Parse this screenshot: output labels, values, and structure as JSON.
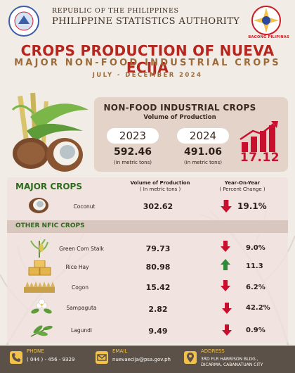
{
  "header": {
    "agency_line1": "REPUBLIC OF THE PHILIPPINES",
    "agency_line2": "PHILIPPINE STATISTICS AUTHORITY",
    "bagong_pilipinas": "BAGONG PILIPINAS"
  },
  "title": "CROPS PRODUCTION OF NUEVA ECIJA",
  "subtitle": "MAJOR NON-FOOD INDUSTRIAL  CROPS",
  "period": "JULY - DECEMBER 2024",
  "summary": {
    "heading": "NON-FOOD INDUSTRIAL CROPS",
    "subheading": "Volume of Production",
    "year_a": "2023",
    "value_a": "592.46",
    "unit_a": "(in metric tons)",
    "year_b": "2024",
    "value_b": "491.06",
    "unit_b": "(in metric tons)",
    "change": "17.12",
    "change_direction": "down"
  },
  "table": {
    "major_label": "MAJOR CROPS",
    "col_volume_title": "Volume of Production",
    "col_volume_unit": "( In metric tons )",
    "col_yoy_title": "Year-On-Year",
    "col_yoy_unit": "( Percent Change )",
    "other_label": "OTHER NFIC CROPS",
    "major": [
      {
        "name": "Coconut",
        "value": "302.62",
        "pct": "19.1%",
        "direction": "down"
      }
    ],
    "other": [
      {
        "name": "Green Corn Stalk",
        "value": "79.73",
        "pct": "9.0%",
        "direction": "down"
      },
      {
        "name": "Rice Hay",
        "value": "80.98",
        "pct": "11.3",
        "direction": "up"
      },
      {
        "name": "Cogon",
        "value": "15.42",
        "pct": "6.2%",
        "direction": "down"
      },
      {
        "name": "Sampaguta",
        "value": "2.82",
        "pct": "42.2%",
        "direction": "down"
      },
      {
        "name": "Lagundi",
        "value": "9.49",
        "pct": "0.9%",
        "direction": "down"
      }
    ]
  },
  "footer": {
    "phone_label": "PHONE",
    "phone": "( 044 ) - 456 - 9329",
    "email_label": "EMAIL",
    "email": "nuevaecija@psa.gov.ph",
    "address_label": "ADDRESS",
    "address_line1": "3RD FLR HARRISON BLDG.,",
    "address_line2": "DICARMA, CABANATUAN CITY"
  },
  "colors": {
    "title_red": "#b5261e",
    "accent_brown": "#9d6b3a",
    "section_green": "#2e6b1f",
    "down_red": "#c8102e",
    "up_green": "#2e8b3a",
    "footer_bg": "#5b5148",
    "footer_accent": "#f2c14a"
  }
}
